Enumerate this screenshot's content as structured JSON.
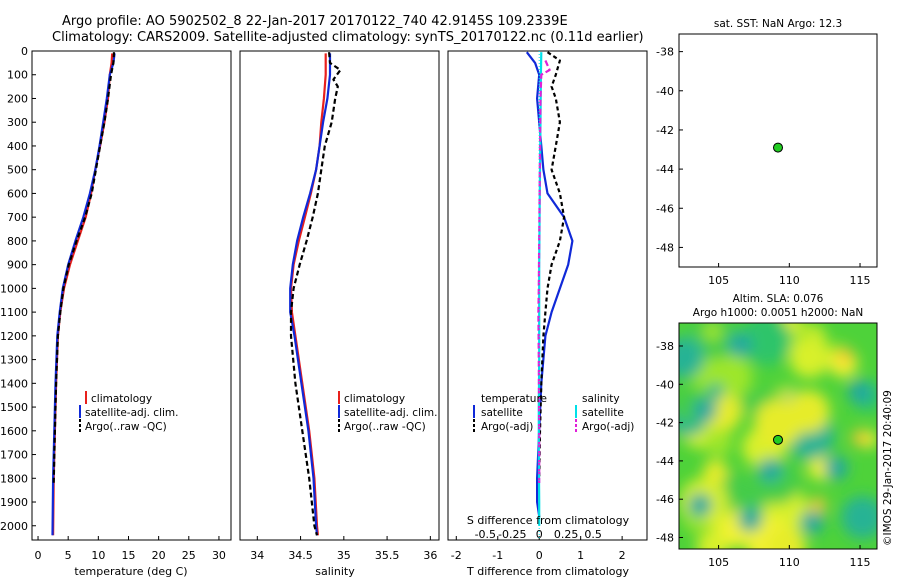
{
  "header": {
    "line1": "Argo profile: AO 5902502_8 22-Jan-2017 20170122_740 42.9145S 109.2339E",
    "line2": "Climatology: CARS2009. Satellite-adjusted climatology: synTS_20170122.nc (0.11d earlier)"
  },
  "credit": "©IMOS 29-Jan-2017 20:40:09",
  "colors": {
    "climatology": "#e8201c",
    "satellite": "#1029d8",
    "argo": "#000000",
    "sal_sat": "#00e0e8",
    "sal_argo": "#e020d8",
    "marker": "#22cc22"
  },
  "chart_data": [
    {
      "id": "temperature",
      "type": "line",
      "xlabel": "temperature (deg C)",
      "ylabel": "",
      "xlim": [
        -1,
        32
      ],
      "ylim": [
        0,
        2060
      ],
      "xticks": [
        0,
        5,
        10,
        15,
        20,
        25,
        30
      ],
      "yticks": [
        0,
        100,
        200,
        300,
        400,
        500,
        600,
        700,
        800,
        900,
        1000,
        1100,
        1200,
        1300,
        1400,
        1500,
        1600,
        1700,
        1800,
        1900,
        2000
      ],
      "legend": [
        "climatology",
        "satellite-adj. clim.",
        "Argo(..raw -QC)"
      ],
      "series": [
        {
          "name": "climatology",
          "color": "#e8201c",
          "dash": "",
          "x": [
            12.3,
            12.2,
            11.9,
            11.6,
            11.0,
            10.3,
            9.5,
            8.8,
            7.9,
            6.6,
            5.3,
            4.3,
            3.7,
            3.3,
            3.0,
            2.8,
            2.6,
            2.5
          ],
          "y": [
            10,
            50,
            100,
            200,
            300,
            400,
            500,
            600,
            700,
            800,
            900,
            1000,
            1100,
            1200,
            1400,
            1600,
            1800,
            2040
          ]
        },
        {
          "name": "satellite-adj. clim.",
          "color": "#1029d8",
          "dash": "",
          "x": [
            12.7,
            12.5,
            11.9,
            11.4,
            10.8,
            10.2,
            9.5,
            8.6,
            7.5,
            6.2,
            5.0,
            4.1,
            3.6,
            3.2,
            2.9,
            2.7,
            2.5,
            2.4
          ],
          "y": [
            10,
            50,
            100,
            200,
            300,
            400,
            500,
            600,
            700,
            800,
            900,
            1000,
            1100,
            1200,
            1400,
            1600,
            1800,
            2040
          ]
        },
        {
          "name": "Argo(..raw -QC)",
          "color": "#000000",
          "dash": "5,3",
          "x": [
            12.6,
            12.5,
            12.1,
            11.6,
            11.0,
            10.3,
            9.6,
            8.9,
            7.8,
            6.4,
            5.1,
            4.2,
            3.7,
            3.3,
            3.0,
            2.8,
            2.6
          ],
          "y": [
            5,
            50,
            100,
            200,
            300,
            400,
            500,
            600,
            700,
            800,
            900,
            1000,
            1100,
            1200,
            1400,
            1600,
            1820
          ]
        }
      ]
    },
    {
      "id": "salinity",
      "type": "line",
      "xlabel": "salinity",
      "ylabel": "",
      "xlim": [
        33.8,
        36.1
      ],
      "ylim": [
        0,
        2060
      ],
      "xticks": [
        34,
        34.5,
        35,
        35.5,
        36
      ],
      "legend": [
        "climatology",
        "satellite-adj. clim.",
        "Argo(..raw -QC)"
      ],
      "series": [
        {
          "name": "climatology",
          "color": "#e8201c",
          "dash": "",
          "x": [
            34.79,
            34.79,
            34.79,
            34.77,
            34.74,
            34.72,
            34.68,
            34.62,
            34.55,
            34.48,
            34.42,
            34.39,
            34.4,
            34.44,
            34.52,
            34.6,
            34.66,
            34.69,
            34.7
          ],
          "y": [
            10,
            50,
            100,
            200,
            300,
            400,
            500,
            600,
            700,
            800,
            900,
            1000,
            1100,
            1200,
            1400,
            1600,
            1800,
            2000,
            2040
          ]
        },
        {
          "name": "satellite-adj. clim.",
          "color": "#1029d8",
          "dash": "",
          "x": [
            34.84,
            34.84,
            34.84,
            34.81,
            34.76,
            34.72,
            34.68,
            34.61,
            34.53,
            34.46,
            34.41,
            34.38,
            34.38,
            34.43,
            34.51,
            34.59,
            34.65,
            34.68,
            34.69
          ],
          "y": [
            10,
            50,
            100,
            200,
            300,
            400,
            500,
            600,
            700,
            800,
            900,
            1000,
            1100,
            1200,
            1400,
            1600,
            1800,
            2000,
            2040
          ]
        },
        {
          "name": "Argo(..raw -QC)",
          "color": "#000000",
          "dash": "5,3",
          "x": [
            34.83,
            34.84,
            34.96,
            34.88,
            34.93,
            34.9,
            34.86,
            34.78,
            34.74,
            34.7,
            34.64,
            34.57,
            34.49,
            34.42,
            34.39,
            34.39,
            34.44,
            34.52,
            34.6,
            34.66,
            34.69
          ],
          "y": [
            5,
            50,
            80,
            120,
            150,
            200,
            300,
            400,
            500,
            600,
            700,
            800,
            900,
            1000,
            1100,
            1200,
            1400,
            1600,
            1800,
            2000,
            2040
          ]
        }
      ]
    },
    {
      "id": "differences",
      "type": "line",
      "xlabel": "T difference from climatology",
      "xlabel_top": "S difference from climatology",
      "ylabel": "",
      "xlim": [
        -2.2,
        2.6
      ],
      "ylim": [
        0,
        2060
      ],
      "xticks": [
        -2,
        -1,
        0,
        1,
        2
      ],
      "xticks_top": [
        "-0.5",
        "-0.25",
        "0",
        "0.25",
        "0.5"
      ],
      "legend_titles": [
        "temperature",
        "salinity"
      ],
      "legend": [
        "satellite",
        "Argo(-adj)",
        "satellite",
        "Argo(-adj)"
      ],
      "series": [
        {
          "name": "T satellite",
          "color": "#1029d8",
          "dash": "",
          "x": [
            -0.3,
            -0.1,
            0.0,
            -0.05,
            0.0,
            0.05,
            0.1,
            0.2,
            0.6,
            0.8,
            0.7,
            0.5,
            0.3,
            0.15,
            0.05,
            0.0,
            -0.05,
            -0.05,
            0.0
          ],
          "y": [
            5,
            50,
            100,
            200,
            300,
            400,
            500,
            600,
            700,
            800,
            900,
            1000,
            1100,
            1200,
            1400,
            1600,
            1800,
            1900,
            1960
          ]
        },
        {
          "name": "T Argo(-adj)",
          "color": "#000000",
          "dash": "4,3",
          "x": [
            0.2,
            0.5,
            0.4,
            0.3,
            0.4,
            0.5,
            0.4,
            0.3,
            0.5,
            0.6,
            0.5,
            0.3,
            0.2,
            0.15,
            0.1,
            0.05,
            0.02,
            0.0
          ],
          "y": [
            5,
            40,
            100,
            150,
            200,
            300,
            400,
            500,
            600,
            700,
            800,
            900,
            1000,
            1100,
            1200,
            1400,
            1600,
            1800
          ]
        },
        {
          "name": "S satellite",
          "color": "#00e0e8",
          "dash": "",
          "x": [
            0.05,
            0.04,
            0.03,
            0.02,
            0.01,
            0.0,
            0.0,
            0.0,
            -0.01,
            -0.01,
            0.0,
            0.0,
            0.0
          ],
          "y": [
            5,
            100,
            300,
            500,
            700,
            900,
            1100,
            1300,
            1500,
            1700,
            1900,
            1980,
            2000
          ]
        },
        {
          "name": "S Argo(-adj)",
          "color": "#e020d8",
          "dash": "6,3",
          "x": [
            0.15,
            0.25,
            0.05,
            0.03,
            0.02,
            0.01,
            0.0,
            -0.01,
            -0.02,
            -0.01,
            0.0,
            0.0
          ],
          "y": [
            40,
            80,
            100,
            200,
            400,
            600,
            800,
            1000,
            1100,
            1300,
            1600,
            1820
          ]
        }
      ]
    },
    {
      "id": "sst_map",
      "type": "scatter",
      "title": "sat. SST: NaN  Argo: 12.3",
      "xlim": [
        102.2,
        116.2
      ],
      "ylim": [
        -49.0,
        -37.1
      ],
      "xticks": [
        105,
        110,
        115
      ],
      "yticks": [
        -38,
        -40,
        -42,
        -44,
        -46,
        -48
      ],
      "points": [
        {
          "lon": 109.2,
          "lat": -42.9
        }
      ]
    },
    {
      "id": "sla_map",
      "type": "heatmap",
      "title_line1": "Altim. SLA: 0.076",
      "title_line2": "Argo h1000: 0.0051  h2000: NaN",
      "xlim": [
        102.2,
        116.2
      ],
      "ylim": [
        -48.6,
        -36.8
      ],
      "xticks": [
        105,
        110,
        115
      ],
      "yticks": [
        -38,
        -40,
        -42,
        -44,
        -46,
        -48
      ],
      "points": [
        {
          "lon": 109.2,
          "lat": -42.9
        }
      ]
    }
  ]
}
